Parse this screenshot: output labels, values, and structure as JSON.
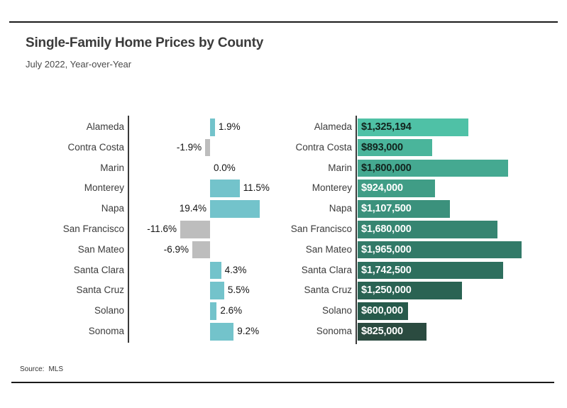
{
  "page": {
    "title": "Single-Family Home Prices by County",
    "subtitle": "July 2022, Year-over-Year",
    "source_prefix": "Source:",
    "source_value": "MLS"
  },
  "colors": {
    "axis": "#3a3a3a",
    "rule": "#1a1a1a",
    "title_text": "#3b3b3b",
    "category_text": "#3b3b3b",
    "value_text": "#141414",
    "positive_bar": "#73c3cb",
    "negative_bar": "#bdbdbd",
    "price_label_dark": "#12241e",
    "price_label_light": "#ffffff"
  },
  "chart_data": [
    {
      "type": "bar",
      "orientation": "horizontal",
      "name": "year-over-year-change",
      "unit": "percent",
      "categories": [
        "Alameda",
        "Contra Costa",
        "Marin",
        "Monterey",
        "Napa",
        "San Francisco",
        "San Mateo",
        "Santa Clara",
        "Santa Cruz",
        "Solano",
        "Sonoma"
      ],
      "values": [
        1.9,
        -1.9,
        0.0,
        11.5,
        19.4,
        -11.6,
        -6.9,
        4.3,
        5.5,
        2.6,
        9.2
      ],
      "value_labels": [
        "1.9%",
        "-1.9%",
        "0.0%",
        "11.5%",
        "19.4%",
        "-11.6%",
        "-6.9%",
        "4.3%",
        "5.5%",
        "2.6%",
        "9.2%"
      ],
      "positive_color": "#73c3cb",
      "negative_color": "#bdbdbd",
      "xlim": [
        -13,
        21
      ],
      "grid": false,
      "legend": false
    },
    {
      "type": "bar",
      "orientation": "horizontal",
      "name": "median-price",
      "unit": "usd",
      "categories": [
        "Alameda",
        "Contra Costa",
        "Marin",
        "Monterey",
        "Napa",
        "San Francisco",
        "San Mateo",
        "Santa Clara",
        "Santa Cruz",
        "Solano",
        "Sonoma"
      ],
      "values": [
        1325194,
        893000,
        1800000,
        924000,
        1107500,
        1680000,
        1965000,
        1742500,
        1250000,
        600000,
        825000
      ],
      "value_labels": [
        "$1,325,194",
        "$893,000",
        "$1,800,000",
        "$924,000",
        "$1,107,500",
        "$1,680,000",
        "$1,965,000",
        "$1,742,500",
        "$1,250,000",
        "$600,000",
        "$825,000"
      ],
      "bar_colors": [
        "#4fc1a6",
        "#4ab59b",
        "#45a991",
        "#409d86",
        "#3b917c",
        "#368571",
        "#327a68",
        "#2e6f5e",
        "#2a6353",
        "#275a4b",
        "#2b4b40"
      ],
      "label_colors": [
        "dark",
        "dark",
        "dark",
        "light",
        "light",
        "light",
        "light",
        "light",
        "light",
        "light",
        "light"
      ],
      "xlim": [
        0,
        2000000
      ],
      "grid": false,
      "legend": false
    }
  ]
}
